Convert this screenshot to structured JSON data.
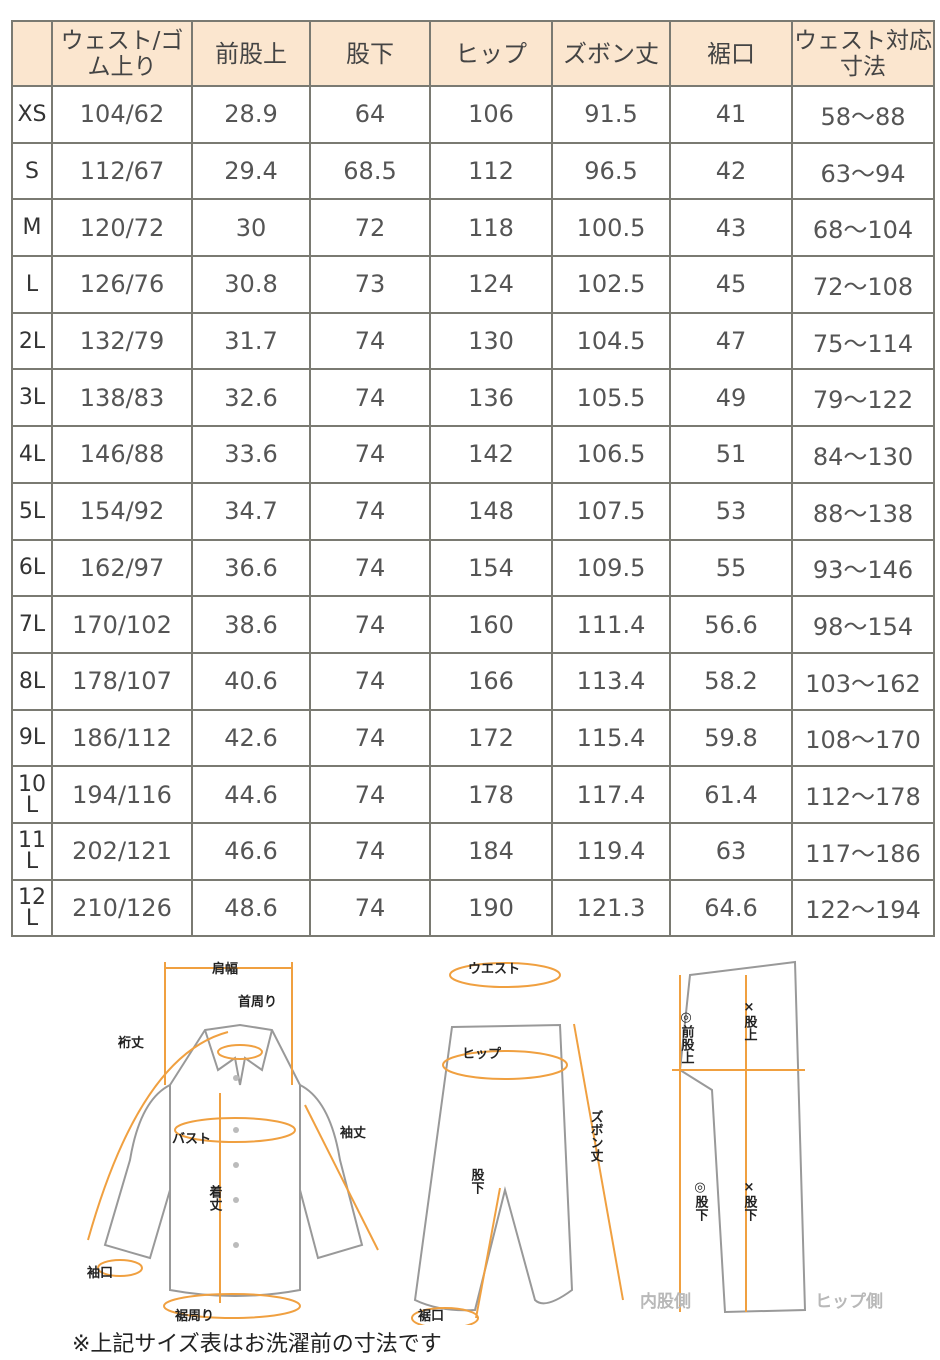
{
  "table": {
    "headers": [
      "",
      "ウェスト/ゴム上り",
      "前股上",
      "股下",
      "ヒップ",
      "ズボン丈",
      "裾口",
      "ウェスト対応寸法"
    ],
    "rows": [
      [
        "XS",
        "104/62",
        "28.9",
        "64",
        "106",
        "91.5",
        "41",
        "58～88"
      ],
      [
        "S",
        "112/67",
        "29.4",
        "68.5",
        "112",
        "96.5",
        "42",
        "63～94"
      ],
      [
        "M",
        "120/72",
        "30",
        "72",
        "118",
        "100.5",
        "43",
        "68～104"
      ],
      [
        "L",
        "126/76",
        "30.8",
        "73",
        "124",
        "102.5",
        "45",
        "72～108"
      ],
      [
        "2L",
        "132/79",
        "31.7",
        "74",
        "130",
        "104.5",
        "47",
        "75～114"
      ],
      [
        "3L",
        "138/83",
        "32.6",
        "74",
        "136",
        "105.5",
        "49",
        "79～122"
      ],
      [
        "4L",
        "146/88",
        "33.6",
        "74",
        "142",
        "106.5",
        "51",
        "84～130"
      ],
      [
        "5L",
        "154/92",
        "34.7",
        "74",
        "148",
        "107.5",
        "53",
        "88～138"
      ],
      [
        "6L",
        "162/97",
        "36.6",
        "74",
        "154",
        "109.5",
        "55",
        "93～146"
      ],
      [
        "7L",
        "170/102",
        "38.6",
        "74",
        "160",
        "111.4",
        "56.6",
        "98～154"
      ],
      [
        "8L",
        "178/107",
        "40.6",
        "74",
        "166",
        "113.4",
        "58.2",
        "103～162"
      ],
      [
        "9L",
        "186/112",
        "42.6",
        "74",
        "172",
        "115.4",
        "59.8",
        "108～170"
      ],
      [
        "10L",
        "194/116",
        "44.6",
        "74",
        "178",
        "117.4",
        "61.4",
        "112～178"
      ],
      [
        "11L",
        "202/121",
        "46.6",
        "74",
        "184",
        "119.4",
        "63",
        "117～186"
      ],
      [
        "12L",
        "210/126",
        "48.6",
        "74",
        "190",
        "121.3",
        "64.6",
        "122～194"
      ]
    ]
  },
  "diagram": {
    "shirt": {
      "shoulder": "肩幅",
      "neck": "首周り",
      "yuki": "裄丈",
      "bust": "バスト",
      "sleeve": "袖丈",
      "length": "着丈",
      "cuff": "袖口",
      "hem": "裾周り"
    },
    "pants": {
      "waist": "ウエスト",
      "hip": "ヒップ",
      "length": "ズボン丈",
      "inseam": "股下",
      "hem": "裾口"
    },
    "side": {
      "front_rise": "◎前股上",
      "rise": "×股上",
      "inseam_inner": "◎股下",
      "inseam": "×股下",
      "inner_side": "内股側",
      "hip_side": "ヒップ側"
    }
  },
  "note": "※上記サイズ表はお洗濯前の寸法です",
  "colors": {
    "header_bg": "#fbe6cf",
    "accent": "#f0a040",
    "border": "#7a7a72"
  }
}
